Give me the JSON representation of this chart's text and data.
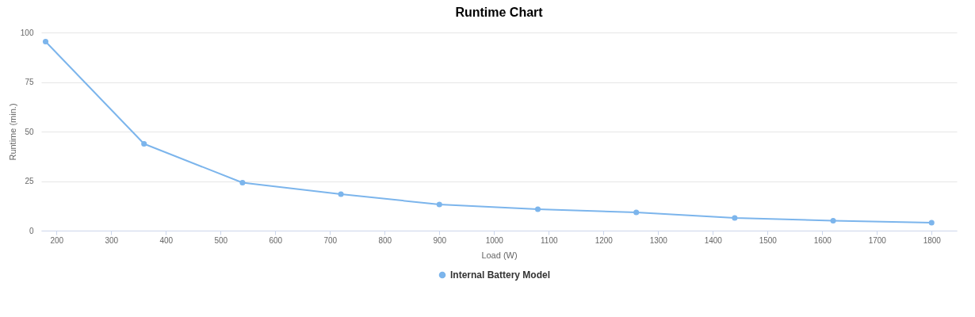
{
  "chart_data": {
    "type": "line",
    "title": "Runtime Chart",
    "xlabel": "Load (W)",
    "ylabel": "Runtime (min.)",
    "x": [
      180,
      360,
      540,
      720,
      900,
      1080,
      1260,
      1440,
      1620,
      1800
    ],
    "series": [
      {
        "name": "Internal Battery Model",
        "color": "#7cb5ec",
        "values": [
          95.4,
          43.8,
          24.2,
          18.4,
          13.2,
          10.8,
          9.2,
          6.4,
          5,
          4
        ]
      }
    ],
    "xlim": [
      172,
      1846
    ],
    "xticks": [
      200,
      300,
      400,
      500,
      600,
      700,
      800,
      900,
      1000,
      1100,
      1200,
      1300,
      1400,
      1500,
      1600,
      1700,
      1800
    ],
    "ylim": [
      0,
      100
    ],
    "yticks": [
      0,
      25,
      50,
      75,
      100
    ],
    "grid": "y",
    "legend": "bottom",
    "marker": "circle",
    "line_style": "solid"
  }
}
